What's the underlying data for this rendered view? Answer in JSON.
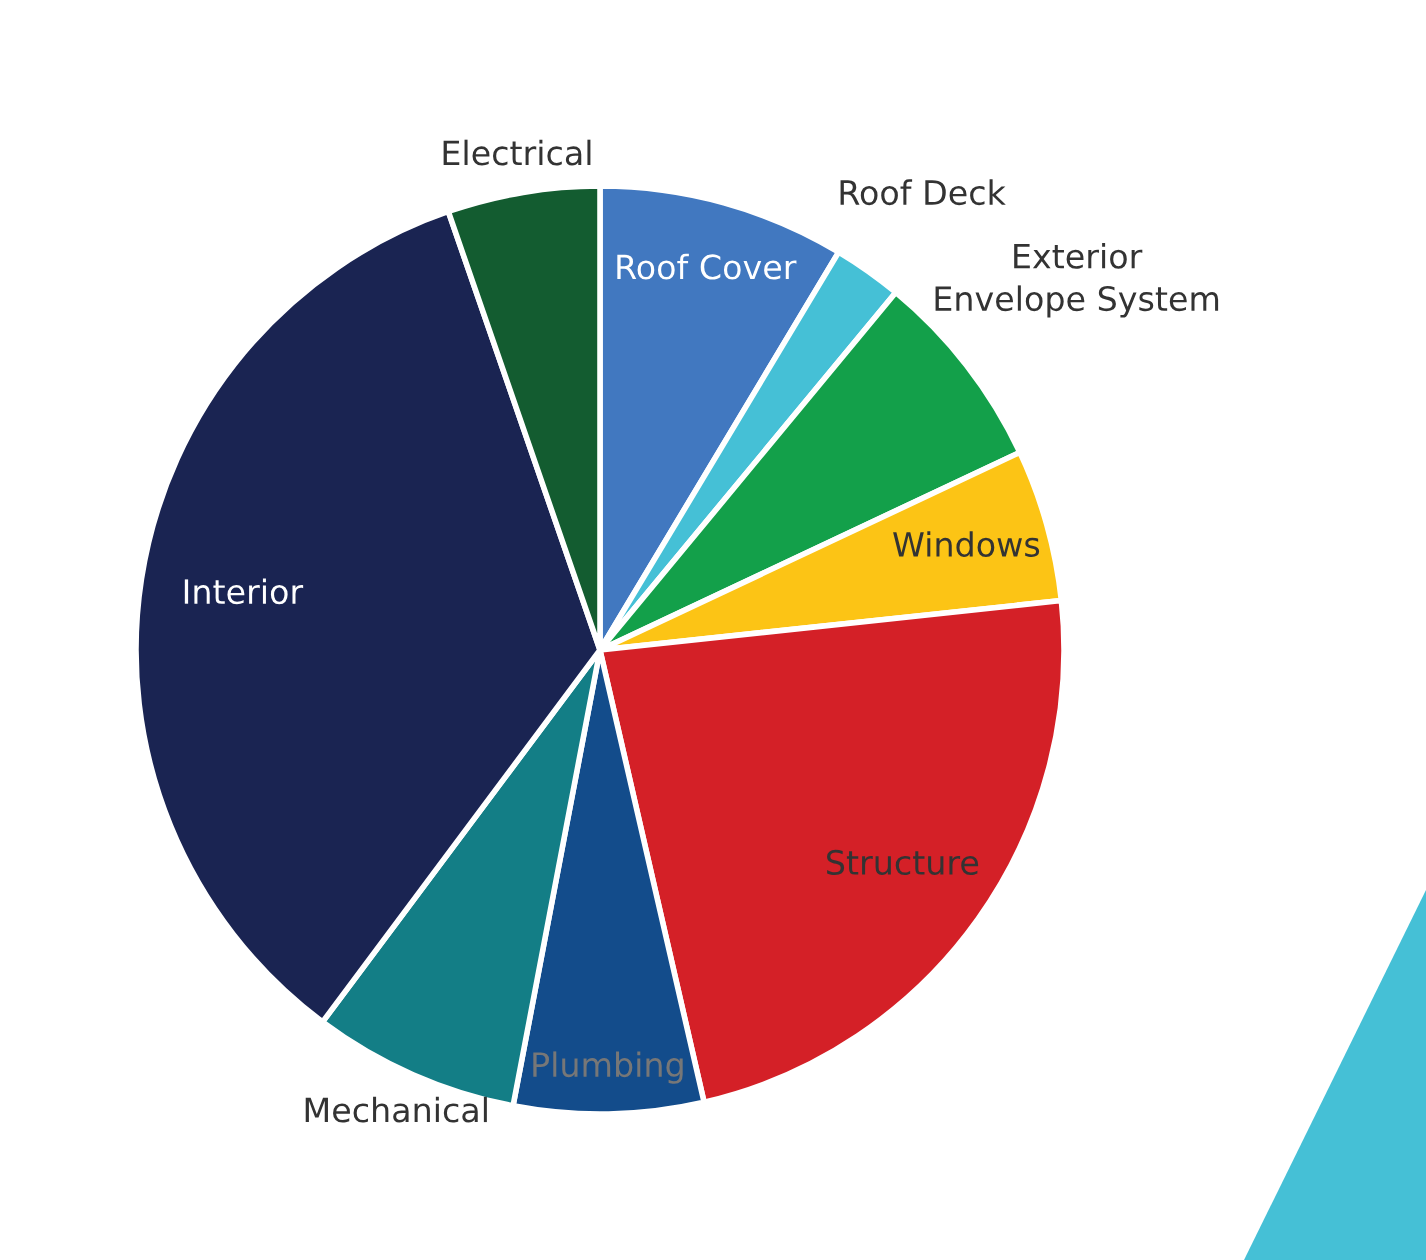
{
  "chart_data": {
    "type": "pie",
    "categories": [
      "Roof Cover",
      "Roof Deck",
      "Exterior\nEnvelope System",
      "Windows",
      "Structure",
      "Plumbing",
      "Mechanical",
      "Interior",
      "Electrical"
    ],
    "values": [
      8.6,
      2.4,
      7.0,
      5.3,
      23.1,
      6.6,
      7.2,
      34.5,
      5.3
    ],
    "colors": [
      "#4178c0",
      "#45c0d6",
      "#13a04a",
      "#fcc415",
      "#d42027",
      "#134c8b",
      "#137e86",
      "#1a2452",
      "#135c30"
    ]
  }
}
